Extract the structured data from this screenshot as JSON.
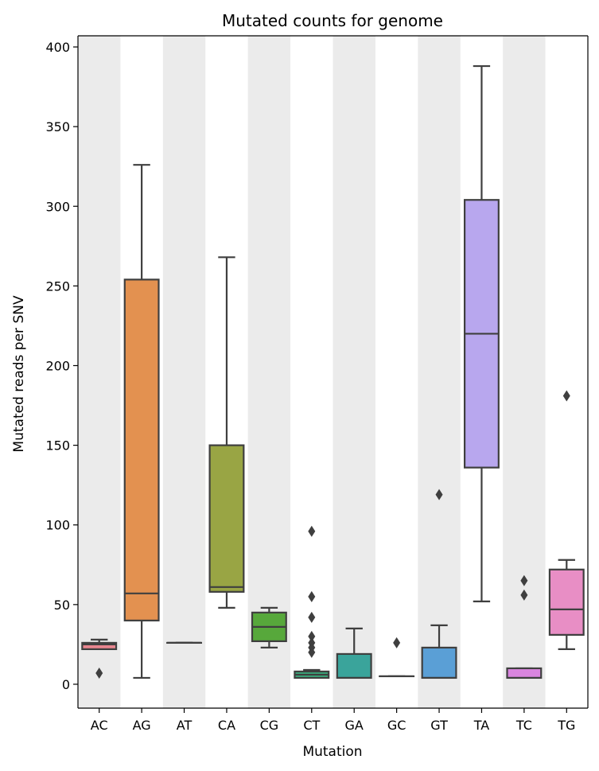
{
  "chart_data": {
    "type": "box",
    "title": "Mutated counts for genome",
    "xlabel": "Mutation",
    "ylabel": "Mutated reads per SNV",
    "ylim": [
      -15,
      407
    ],
    "yticks": [
      0,
      50,
      100,
      150,
      200,
      250,
      300,
      350,
      400
    ],
    "grid": false,
    "background_bands": "alternating grey behind every other category",
    "boxes": [
      {
        "category": "AC",
        "color": "#e8868f",
        "whisker_low": 22,
        "q1": 22,
        "median": 25,
        "q3": 26,
        "whisker_high": 28,
        "outliers": [
          7
        ]
      },
      {
        "category": "AG",
        "color": "#e39150",
        "whisker_low": 4,
        "q1": 40,
        "median": 57,
        "q3": 254,
        "whisker_high": 326,
        "outliers": []
      },
      {
        "category": "AT",
        "color": "#c79a44",
        "whisker_low": 26,
        "q1": 26,
        "median": 26,
        "q3": 26,
        "whisker_high": 26,
        "outliers": []
      },
      {
        "category": "CA",
        "color": "#99a544",
        "whisker_low": 48,
        "q1": 58,
        "median": 61,
        "q3": 150,
        "whisker_high": 268,
        "outliers": []
      },
      {
        "category": "CG",
        "color": "#57a83b",
        "whisker_low": 23,
        "q1": 27,
        "median": 36,
        "q3": 45,
        "whisker_high": 48,
        "outliers": []
      },
      {
        "category": "CT",
        "color": "#3aa77a",
        "whisker_low": 4,
        "q1": 4,
        "median": 6,
        "q3": 8,
        "whisker_high": 9,
        "outliers": [
          96,
          55,
          42,
          30,
          26,
          23,
          20
        ]
      },
      {
        "category": "GA",
        "color": "#3aa49b",
        "whisker_low": 4,
        "q1": 4,
        "median": 4,
        "q3": 19,
        "whisker_high": 35,
        "outliers": []
      },
      {
        "category": "GC",
        "color": "#3ea2ae",
        "whisker_low": 5,
        "q1": 5,
        "median": 5,
        "q3": 5,
        "whisker_high": 5,
        "outliers": [
          26
        ]
      },
      {
        "category": "GT",
        "color": "#5a9fd6",
        "whisker_low": 4,
        "q1": 4,
        "median": 4,
        "q3": 23,
        "whisker_high": 37,
        "outliers": [
          119
        ]
      },
      {
        "category": "TA",
        "color": "#b8a7ee",
        "whisker_low": 52,
        "q1": 136,
        "median": 220,
        "q3": 304,
        "whisker_high": 388,
        "outliers": []
      },
      {
        "category": "TC",
        "color": "#d985df",
        "whisker_low": 4,
        "q1": 4,
        "median": 4,
        "q3": 10,
        "whisker_high": 10,
        "outliers": [
          65,
          56
        ]
      },
      {
        "category": "TG",
        "color": "#e88ec5",
        "whisker_low": 22,
        "q1": 31,
        "median": 47,
        "q3": 72,
        "whisker_high": 78,
        "outliers": [
          181
        ]
      }
    ]
  }
}
